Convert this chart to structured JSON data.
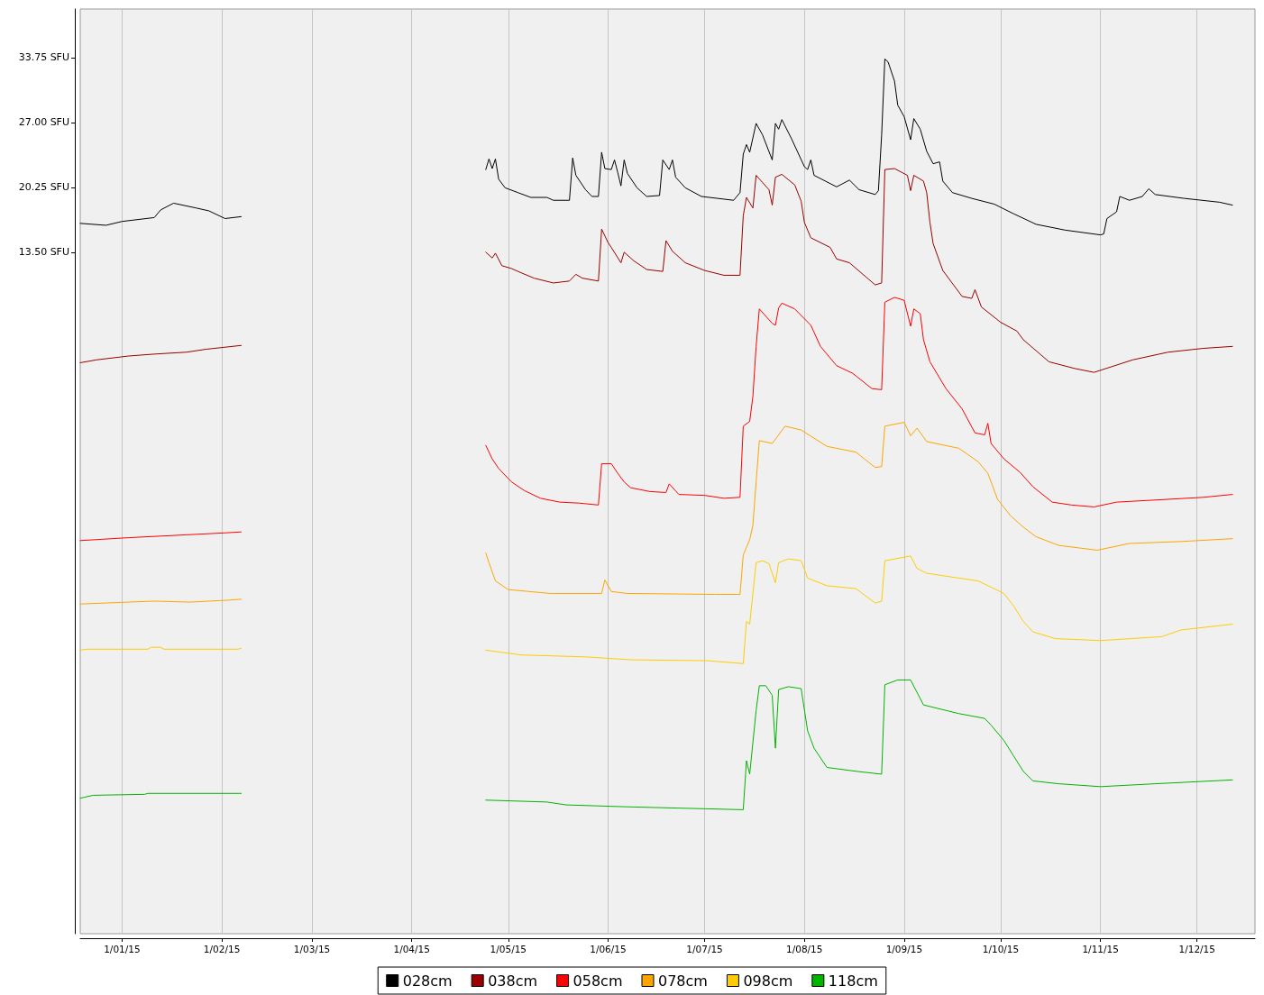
{
  "chart_data": {
    "type": "line",
    "xlim": [
      "2014-12-19",
      "2015-12-19"
    ],
    "ylim": [
      -57.4,
      38.8
    ],
    "xticks": [
      {
        "value": "2015-01-01",
        "label": "1/01/15"
      },
      {
        "value": "2015-02-01",
        "label": "1/02/15"
      },
      {
        "value": "2015-03-01",
        "label": "1/03/15"
      },
      {
        "value": "2015-04-01",
        "label": "1/04/15"
      },
      {
        "value": "2015-05-01",
        "label": "1/05/15"
      },
      {
        "value": "2015-06-01",
        "label": "1/06/15"
      },
      {
        "value": "2015-07-01",
        "label": "1/07/15"
      },
      {
        "value": "2015-08-01",
        "label": "1/08/15"
      },
      {
        "value": "2015-09-01",
        "label": "1/09/15"
      },
      {
        "value": "2015-10-01",
        "label": "1/10/15"
      },
      {
        "value": "2015-11-01",
        "label": "1/11/15"
      },
      {
        "value": "2015-12-01",
        "label": "1/12/15"
      }
    ],
    "yticks": [
      {
        "value": 13.5,
        "label": "13.50 SFU"
      },
      {
        "value": 20.25,
        "label": "20.25 SFU"
      },
      {
        "value": 27,
        "label": "27.00 SFU"
      },
      {
        "value": 33.75,
        "label": "33.75 SFU"
      }
    ],
    "grid": "x",
    "legend": "bottom",
    "series": [
      {
        "name": "028cm",
        "color": "#000000",
        "x": [
          "2014-12-19",
          "2014-12-27",
          "2015-01-01",
          "2015-01-11",
          "2015-01-13",
          "2015-01-17",
          "2015-01-24",
          "2015-01-28",
          "2015-02-02",
          "2015-02-07",
          "2015-03-16",
          "2015-04-24",
          "2015-04-25",
          "2015-04-26",
          "2015-04-27",
          "2015-04-28",
          "2015-04-30",
          "2015-05-04",
          "2015-05-08",
          "2015-05-13",
          "2015-05-15",
          "2015-05-20",
          "2015-05-21",
          "2015-05-22",
          "2015-05-25",
          "2015-05-27",
          "2015-05-29",
          "2015-05-30",
          "2015-05-31",
          "2015-06-02",
          "2015-06-03",
          "2015-06-04",
          "2015-06-05",
          "2015-06-06",
          "2015-06-07",
          "2015-06-10",
          "2015-06-13",
          "2015-06-17",
          "2015-06-18",
          "2015-06-20",
          "2015-06-21",
          "2015-06-22",
          "2015-06-25",
          "2015-06-30",
          "2015-07-05",
          "2015-07-10",
          "2015-07-12",
          "2015-07-13",
          "2015-07-14",
          "2015-07-15",
          "2015-07-17",
          "2015-07-19",
          "2015-07-22",
          "2015-07-23",
          "2015-07-24",
          "2015-07-25",
          "2015-07-28",
          "2015-08-01",
          "2015-08-02",
          "2015-08-03",
          "2015-08-04",
          "2015-08-11",
          "2015-08-15",
          "2015-08-18",
          "2015-08-23",
          "2015-08-24",
          "2015-08-25",
          "2015-08-26",
          "2015-08-27",
          "2015-08-29",
          "2015-08-30",
          "2015-09-01",
          "2015-09-03",
          "2015-09-04",
          "2015-09-06",
          "2015-09-08",
          "2015-09-10",
          "2015-09-12",
          "2015-09-13",
          "2015-09-16",
          "2015-09-22",
          "2015-09-29",
          "2015-10-05",
          "2015-10-12",
          "2015-10-21",
          "2015-11-01",
          "2015-11-02",
          "2015-11-03",
          "2015-11-06",
          "2015-11-07",
          "2015-11-10",
          "2015-11-14",
          "2015-11-16",
          "2015-11-18",
          "2015-11-27",
          "2015-12-08",
          "2015-12-12"
        ],
        "values": [
          16.5,
          16.3,
          16.7,
          17.1,
          17.9,
          18.6,
          18.1,
          17.8,
          17.0,
          17.2,
          null,
          22.1,
          23.2,
          22.2,
          23.2,
          21.1,
          20.2,
          19.7,
          19.2,
          19.2,
          18.9,
          18.9,
          23.3,
          21.5,
          20.0,
          19.3,
          19.3,
          23.9,
          22.2,
          22.1,
          23.1,
          21.8,
          20.4,
          23.1,
          21.7,
          20.2,
          19.3,
          19.4,
          23.1,
          22.1,
          23.1,
          21.3,
          20.2,
          19.3,
          19.1,
          18.9,
          19.7,
          23.7,
          24.7,
          23.9,
          26.9,
          25.7,
          23.1,
          26.9,
          26.3,
          27.3,
          25.3,
          22.4,
          22.1,
          23.1,
          21.5,
          20.3,
          21.0,
          20.0,
          19.5,
          19.9,
          25.7,
          33.6,
          33.3,
          31.3,
          28.8,
          27.6,
          25.2,
          27.4,
          26.3,
          24.0,
          22.7,
          22.9,
          20.9,
          19.7,
          19.1,
          18.5,
          17.5,
          16.4,
          15.8,
          15.3,
          15.4,
          17.0,
          17.7,
          19.3,
          18.9,
          19.3,
          20.1,
          19.5,
          19.1,
          18.7,
          18.4
        ]
      },
      {
        "name": "038cm",
        "color": "#990000",
        "x": [
          "2014-12-19",
          "2014-12-24",
          "2015-01-03",
          "2015-01-11",
          "2015-01-21",
          "2015-01-27",
          "2015-02-07",
          "2015-03-16",
          "2015-04-24",
          "2015-04-26",
          "2015-04-27",
          "2015-04-29",
          "2015-05-02",
          "2015-05-04",
          "2015-05-09",
          "2015-05-15",
          "2015-05-20",
          "2015-05-22",
          "2015-05-24",
          "2015-05-29",
          "2015-05-30",
          "2015-06-01",
          "2015-06-02",
          "2015-06-05",
          "2015-06-06",
          "2015-06-09",
          "2015-06-13",
          "2015-06-18",
          "2015-06-19",
          "2015-06-21",
          "2015-06-25",
          "2015-07-01",
          "2015-07-07",
          "2015-07-12",
          "2015-07-13",
          "2015-07-14",
          "2015-07-16",
          "2015-07-17",
          "2015-07-21",
          "2015-07-22",
          "2015-07-23",
          "2015-07-25",
          "2015-07-29",
          "2015-07-31",
          "2015-08-01",
          "2015-08-03",
          "2015-08-09",
          "2015-08-11",
          "2015-08-15",
          "2015-08-23",
          "2015-08-25",
          "2015-08-26",
          "2015-08-29",
          "2015-09-02",
          "2015-09-03",
          "2015-09-04",
          "2015-09-07",
          "2015-09-08",
          "2015-09-09",
          "2015-09-10",
          "2015-09-13",
          "2015-09-19",
          "2015-09-22",
          "2015-09-23",
          "2015-09-25",
          "2015-10-01",
          "2015-10-06",
          "2015-10-08",
          "2015-10-16",
          "2015-10-24",
          "2015-10-30",
          "2015-11-11",
          "2015-11-22",
          "2015-12-03",
          "2015-12-12"
        ],
        "values": [
          2.0,
          2.3,
          2.7,
          2.9,
          3.1,
          3.4,
          3.8,
          null,
          13.5,
          12.9,
          13.4,
          12.1,
          11.8,
          11.5,
          10.8,
          10.3,
          10.5,
          11.2,
          10.8,
          10.5,
          15.9,
          14.5,
          14.0,
          12.4,
          13.5,
          12.6,
          11.7,
          11.5,
          14.7,
          13.6,
          12.4,
          11.6,
          11.1,
          11.1,
          17.3,
          19.2,
          18.1,
          21.5,
          20.0,
          18.4,
          21.3,
          21.6,
          20.5,
          18.8,
          16.6,
          15.0,
          14.0,
          12.8,
          12.4,
          10.1,
          10.3,
          22.1,
          22.2,
          21.5,
          19.9,
          21.5,
          20.9,
          19.7,
          16.6,
          14.4,
          11.6,
          8.9,
          8.7,
          9.6,
          7.8,
          6.2,
          5.3,
          4.4,
          2.1,
          1.4,
          1.0,
          2.3,
          3.1,
          3.5,
          3.7
        ]
      },
      {
        "name": "058cm",
        "color": "#ff0000",
        "x": [
          "2014-12-19",
          "2015-01-03",
          "2015-01-21",
          "2015-02-02",
          "2015-02-07",
          "2015-03-16",
          "2015-04-24",
          "2015-04-26",
          "2015-04-28",
          "2015-05-02",
          "2015-05-06",
          "2015-05-11",
          "2015-05-17",
          "2015-05-23",
          "2015-05-29",
          "2015-05-30",
          "2015-06-02",
          "2015-06-04",
          "2015-06-06",
          "2015-06-08",
          "2015-06-14",
          "2015-06-19",
          "2015-06-20",
          "2015-06-23",
          "2015-07-01",
          "2015-07-07",
          "2015-07-12",
          "2015-07-13",
          "2015-07-15",
          "2015-07-16",
          "2015-07-17",
          "2015-07-18",
          "2015-07-22",
          "2015-07-23",
          "2015-07-24",
          "2015-07-25",
          "2015-07-29",
          "2015-08-03",
          "2015-08-06",
          "2015-08-11",
          "2015-08-16",
          "2015-08-22",
          "2015-08-25",
          "2015-08-26",
          "2015-08-29",
          "2015-09-01",
          "2015-09-03",
          "2015-09-04",
          "2015-09-06",
          "2015-09-07",
          "2015-09-09",
          "2015-09-14",
          "2015-09-19",
          "2015-09-23",
          "2015-09-26",
          "2015-09-27",
          "2015-09-28",
          "2015-10-02",
          "2015-10-07",
          "2015-10-11",
          "2015-10-17",
          "2015-10-23",
          "2015-10-30",
          "2015-11-06",
          "2015-11-17",
          "2015-12-03",
          "2015-12-12"
        ],
        "values": [
          -16.5,
          -16.2,
          -15.9,
          -15.7,
          -15.6,
          null,
          -6.6,
          -8.0,
          -9.0,
          -10.4,
          -11.3,
          -12.1,
          -12.5,
          -12.6,
          -12.8,
          -8.5,
          -8.5,
          -9.5,
          -10.4,
          -11.0,
          -11.4,
          -11.5,
          -10.6,
          -11.7,
          -11.8,
          -12.1,
          -12.0,
          -4.6,
          -4.1,
          -1.5,
          3.7,
          7.6,
          6.1,
          5.9,
          7.7,
          8.2,
          7.6,
          5.9,
          3.7,
          1.7,
          0.9,
          -0.7,
          -0.8,
          8.3,
          8.8,
          8.5,
          5.8,
          7.6,
          7.1,
          4.4,
          2.1,
          -0.7,
          -2.8,
          -5.3,
          -5.5,
          -4.3,
          -6.4,
          -8.0,
          -9.4,
          -10.9,
          -12.5,
          -12.8,
          -13.0,
          -12.5,
          -12.3,
          -12.0,
          -11.7
        ]
      },
      {
        "name": "078cm",
        "color": "#ffa500",
        "x": [
          "2014-12-19",
          "2015-01-03",
          "2015-01-11",
          "2015-01-22",
          "2015-02-03",
          "2015-02-07",
          "2015-03-16",
          "2015-04-24",
          "2015-04-25",
          "2015-04-27",
          "2015-05-01",
          "2015-05-14",
          "2015-05-30",
          "2015-05-31",
          "2015-06-02",
          "2015-06-07",
          "2015-07-04",
          "2015-07-12",
          "2015-07-13",
          "2015-07-15",
          "2015-07-16",
          "2015-07-17",
          "2015-07-18",
          "2015-07-22",
          "2015-07-26",
          "2015-07-31",
          "2015-08-08",
          "2015-08-17",
          "2015-08-23",
          "2015-08-25",
          "2015-08-26",
          "2015-09-01",
          "2015-09-03",
          "2015-09-05",
          "2015-09-08",
          "2015-09-18",
          "2015-09-24",
          "2015-09-27",
          "2015-09-30",
          "2015-10-04",
          "2015-10-08",
          "2015-10-12",
          "2015-10-19",
          "2015-10-31",
          "2015-11-10",
          "2015-11-26",
          "2015-12-12"
        ],
        "values": [
          -23.1,
          -22.9,
          -22.8,
          -22.9,
          -22.7,
          -22.6,
          null,
          -17.8,
          -18.8,
          -20.7,
          -21.6,
          -22.0,
          -22.0,
          -20.6,
          -21.8,
          -22.0,
          -22.1,
          -22.1,
          -18.0,
          -16.4,
          -14.9,
          -10.4,
          -6.1,
          -6.4,
          -4.6,
          -5.0,
          -6.7,
          -7.3,
          -8.9,
          -8.8,
          -4.6,
          -4.2,
          -5.6,
          -4.8,
          -6.2,
          -6.9,
          -8.3,
          -9.5,
          -12.2,
          -13.9,
          -15.1,
          -16.1,
          -17.0,
          -17.5,
          -16.8,
          -16.6,
          -16.3
        ]
      },
      {
        "name": "098cm",
        "color": "#ffcc00",
        "x": [
          "2014-12-19",
          "2014-12-21",
          "2015-01-09",
          "2015-01-10",
          "2015-01-13",
          "2015-01-14",
          "2015-02-06",
          "2015-02-07",
          "2015-03-16",
          "2015-04-24",
          "2015-05-05",
          "2015-05-25",
          "2015-06-08",
          "2015-07-02",
          "2015-07-13",
          "2015-07-14",
          "2015-07-15",
          "2015-07-17",
          "2015-07-19",
          "2015-07-21",
          "2015-07-23",
          "2015-07-24",
          "2015-07-27",
          "2015-07-31",
          "2015-08-02",
          "2015-08-08",
          "2015-08-17",
          "2015-08-23",
          "2015-08-25",
          "2015-08-26",
          "2015-09-03",
          "2015-09-05",
          "2015-09-08",
          "2015-09-24",
          "2015-10-02",
          "2015-10-05",
          "2015-10-08",
          "2015-10-11",
          "2015-10-18",
          "2015-11-01",
          "2015-11-20",
          "2015-11-26",
          "2015-12-12"
        ],
        "values": [
          -27.9,
          -27.8,
          -27.8,
          -27.6,
          -27.6,
          -27.8,
          -27.8,
          -27.7,
          null,
          -27.9,
          -28.4,
          -28.6,
          -28.9,
          -29.0,
          -29.3,
          -24.9,
          -25.2,
          -18.8,
          -18.6,
          -18.9,
          -20.9,
          -18.8,
          -18.4,
          -18.6,
          -20.4,
          -21.2,
          -21.5,
          -23.0,
          -22.8,
          -18.6,
          -18.1,
          -19.4,
          -19.9,
          -20.7,
          -22.0,
          -23.3,
          -24.9,
          -26.0,
          -26.7,
          -26.9,
          -26.5,
          -25.8,
          -25.2
        ]
      },
      {
        "name": "118cm",
        "color": "#00b400",
        "x": [
          "2014-12-19",
          "2014-12-23",
          "2015-01-08",
          "2015-01-09",
          "2015-02-07",
          "2015-03-16",
          "2015-04-24",
          "2015-05-13",
          "2015-05-19",
          "2015-06-07",
          "2015-07-01",
          "2015-07-13",
          "2015-07-14",
          "2015-07-15",
          "2015-07-17",
          "2015-07-18",
          "2015-07-20",
          "2015-07-22",
          "2015-07-23",
          "2015-07-24",
          "2015-07-27",
          "2015-07-31",
          "2015-08-02",
          "2015-08-04",
          "2015-08-08",
          "2015-08-17",
          "2015-08-25",
          "2015-08-26",
          "2015-08-30",
          "2015-09-03",
          "2015-09-07",
          "2015-09-18",
          "2015-09-26",
          "2015-09-28",
          "2015-10-02",
          "2015-10-05",
          "2015-10-08",
          "2015-10-11",
          "2015-10-19",
          "2015-11-01",
          "2015-11-18",
          "2015-12-12"
        ],
        "values": [
          -43.3,
          -43.0,
          -42.9,
          -42.8,
          -42.8,
          null,
          -43.5,
          -43.7,
          -44.0,
          -44.2,
          -44.4,
          -44.5,
          -39.4,
          -40.8,
          -34.2,
          -31.6,
          -31.6,
          -32.6,
          -38.1,
          -32.0,
          -31.7,
          -31.9,
          -36.3,
          -38.1,
          -40.1,
          -40.5,
          -40.8,
          -31.5,
          -31.0,
          -31.0,
          -33.6,
          -34.5,
          -35.0,
          -35.7,
          -37.3,
          -38.9,
          -40.5,
          -41.5,
          -41.8,
          -42.1,
          -41.8,
          -41.4
        ]
      }
    ]
  }
}
